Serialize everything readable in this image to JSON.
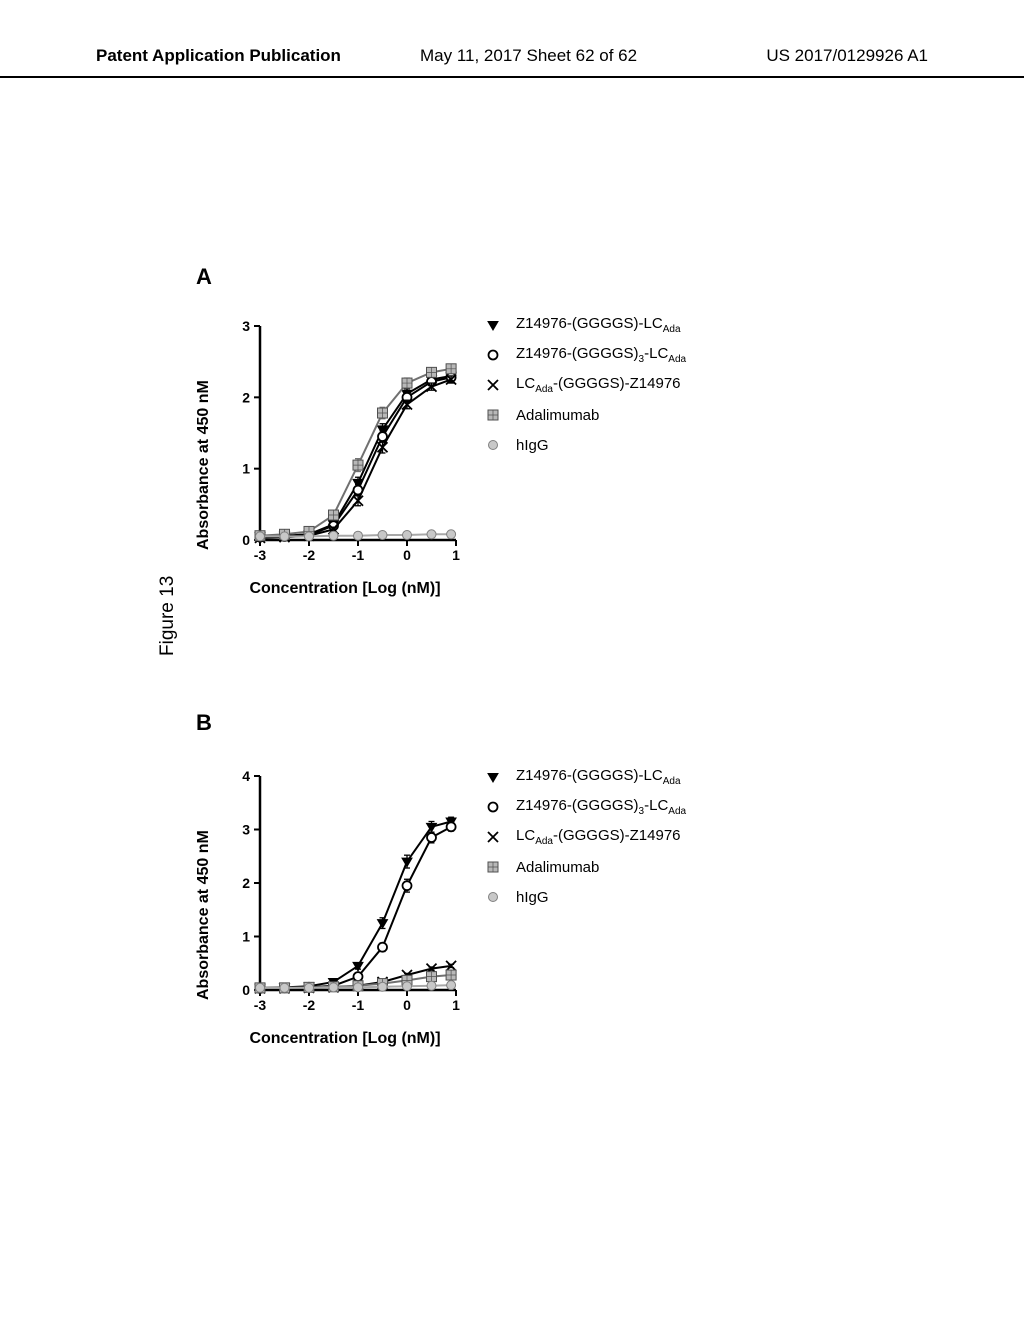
{
  "header": {
    "left": "Patent Application Publication",
    "center": "May 11, 2017  Sheet 62 of 62",
    "right": "US 2017/0129926 A1"
  },
  "figure_label": "Figure 13",
  "panels": {
    "A": {
      "label": "A",
      "chart": {
        "type": "line",
        "xlabel": "Concentration [Log (nM)]",
        "ylabel": "Absorbance at 450 nM",
        "xlim": [
          -3,
          1
        ],
        "ylim": [
          0,
          3
        ],
        "xtick_step": 1,
        "ytick_step": 1,
        "line_color": "#000000",
        "line_width": 2,
        "marker_size": 6,
        "background_color": "#ffffff",
        "series": [
          {
            "name": "Z14976-(GGGGS)-LC_Ada",
            "marker": "triangle-down-filled",
            "color": "#000000",
            "x": [
              -3,
              -2.5,
              -2,
              -1.5,
              -1,
              -0.5,
              0,
              0.5,
              0.9
            ],
            "y": [
              0.05,
              0.06,
              0.08,
              0.22,
              0.8,
              1.55,
              2.05,
              2.25,
              2.3
            ],
            "err": [
              0.02,
              0.02,
              0.02,
              0.04,
              0.08,
              0.08,
              0.07,
              0.06,
              0.05
            ]
          },
          {
            "name": "Z14976-(GGGGS)3-LC_Ada",
            "marker": "circle-open",
            "color": "#000000",
            "x": [
              -3,
              -2.5,
              -2,
              -1.5,
              -1,
              -0.5,
              0,
              0.5,
              0.9
            ],
            "y": [
              0.04,
              0.05,
              0.07,
              0.2,
              0.7,
              1.45,
              2.0,
              2.22,
              2.28
            ],
            "err": [
              0.02,
              0.02,
              0.02,
              0.04,
              0.08,
              0.08,
              0.06,
              0.05,
              0.05
            ]
          },
          {
            "name": "LC_Ada-(GGGGS)-Z14976",
            "marker": "x",
            "color": "#000000",
            "x": [
              -3,
              -2.5,
              -2,
              -1.5,
              -1,
              -0.5,
              0,
              0.5,
              0.9
            ],
            "y": [
              0.03,
              0.04,
              0.06,
              0.15,
              0.55,
              1.3,
              1.9,
              2.15,
              2.25
            ],
            "err": [
              0.02,
              0.02,
              0.02,
              0.03,
              0.07,
              0.08,
              0.06,
              0.05,
              0.05
            ]
          },
          {
            "name": "Adalimumab",
            "marker": "square-hatched",
            "color": "#707070",
            "x": [
              -3,
              -2.5,
              -2,
              -1.5,
              -1,
              -0.5,
              0,
              0.5,
              0.9
            ],
            "y": [
              0.06,
              0.08,
              0.12,
              0.35,
              1.05,
              1.78,
              2.2,
              2.35,
              2.4
            ],
            "err": [
              0.02,
              0.02,
              0.03,
              0.05,
              0.09,
              0.08,
              0.07,
              0.05,
              0.05
            ]
          },
          {
            "name": "hIgG",
            "marker": "circle-gray",
            "color": "#a8a8a8",
            "x": [
              -3,
              -2.5,
              -2,
              -1.5,
              -1,
              -0.5,
              0,
              0.5,
              0.9
            ],
            "y": [
              0.05,
              0.05,
              0.05,
              0.06,
              0.06,
              0.07,
              0.07,
              0.08,
              0.08
            ],
            "err": [
              0.01,
              0.01,
              0.01,
              0.01,
              0.01,
              0.01,
              0.01,
              0.01,
              0.01
            ]
          }
        ],
        "legend": [
          {
            "sym": "triangle-down-filled",
            "html": "Z14976-(GGGGS)-LC<sub>Ada</sub>"
          },
          {
            "sym": "circle-open",
            "html": "Z14976-(GGGGS)<sub>3</sub>-LC<sub>Ada</sub>"
          },
          {
            "sym": "x",
            "html": "LC<sub>Ada</sub>-(GGGGS)-Z14976"
          },
          {
            "sym": "square-hatched",
            "html": "Adalimumab"
          },
          {
            "sym": "circle-gray",
            "html": "hIgG"
          }
        ]
      }
    },
    "B": {
      "label": "B",
      "chart": {
        "type": "line",
        "xlabel": "Concentration [Log (nM)]",
        "ylabel": "Absorbance at 450 nM",
        "xlim": [
          -3,
          1
        ],
        "ylim": [
          0,
          4
        ],
        "xtick_step": 1,
        "ytick_step": 1,
        "line_color": "#000000",
        "line_width": 2,
        "marker_size": 6,
        "background_color": "#ffffff",
        "series": [
          {
            "name": "Z14976-(GGGGS)-LC_Ada",
            "marker": "triangle-down-filled",
            "color": "#000000",
            "x": [
              -3,
              -2.5,
              -2,
              -1.5,
              -1,
              -0.5,
              0,
              0.5,
              0.9
            ],
            "y": [
              0.04,
              0.05,
              0.07,
              0.15,
              0.45,
              1.25,
              2.4,
              3.05,
              3.15
            ],
            "err": [
              0.02,
              0.02,
              0.02,
              0.03,
              0.06,
              0.1,
              0.12,
              0.1,
              0.08
            ]
          },
          {
            "name": "Z14976-(GGGGS)3-LC_Ada",
            "marker": "circle-open",
            "color": "#000000",
            "x": [
              -3,
              -2.5,
              -2,
              -1.5,
              -1,
              -0.5,
              0,
              0.5,
              0.9
            ],
            "y": [
              0.03,
              0.04,
              0.05,
              0.08,
              0.25,
              0.8,
              1.95,
              2.85,
              3.05
            ],
            "err": [
              0.02,
              0.02,
              0.02,
              0.02,
              0.04,
              0.08,
              0.12,
              0.1,
              0.08
            ]
          },
          {
            "name": "LC_Ada-(GGGGS)-Z14976",
            "marker": "x",
            "color": "#000000",
            "x": [
              -3,
              -2.5,
              -2,
              -1.5,
              -1,
              -0.5,
              0,
              0.5,
              0.9
            ],
            "y": [
              0.03,
              0.03,
              0.04,
              0.05,
              0.08,
              0.15,
              0.28,
              0.4,
              0.45
            ],
            "err": [
              0.01,
              0.01,
              0.01,
              0.01,
              0.02,
              0.02,
              0.03,
              0.03,
              0.03
            ]
          },
          {
            "name": "Adalimumab",
            "marker": "square-hatched",
            "color": "#707070",
            "x": [
              -3,
              -2.5,
              -2,
              -1.5,
              -1,
              -0.5,
              0,
              0.5,
              0.9
            ],
            "y": [
              0.04,
              0.04,
              0.05,
              0.06,
              0.08,
              0.12,
              0.18,
              0.25,
              0.28
            ],
            "err": [
              0.01,
              0.01,
              0.01,
              0.01,
              0.02,
              0.02,
              0.02,
              0.02,
              0.02
            ]
          },
          {
            "name": "hIgG",
            "marker": "circle-gray",
            "color": "#a8a8a8",
            "x": [
              -3,
              -2.5,
              -2,
              -1.5,
              -1,
              -0.5,
              0,
              0.5,
              0.9
            ],
            "y": [
              0.04,
              0.04,
              0.04,
              0.05,
              0.05,
              0.06,
              0.07,
              0.08,
              0.09
            ],
            "err": [
              0.01,
              0.01,
              0.01,
              0.01,
              0.01,
              0.01,
              0.01,
              0.01,
              0.01
            ]
          }
        ],
        "legend": [
          {
            "sym": "triangle-down-filled",
            "html": "Z14976-(GGGGS)-LC<sub>Ada</sub>"
          },
          {
            "sym": "circle-open",
            "html": "Z14976-(GGGGS)<sub>3</sub>-LC<sub>Ada</sub>"
          },
          {
            "sym": "x",
            "html": "LC<sub>Ada</sub>-(GGGGS)-Z14976"
          },
          {
            "sym": "square-hatched",
            "html": "Adalimumab"
          },
          {
            "sym": "circle-gray",
            "html": "hIgG"
          }
        ]
      }
    }
  }
}
